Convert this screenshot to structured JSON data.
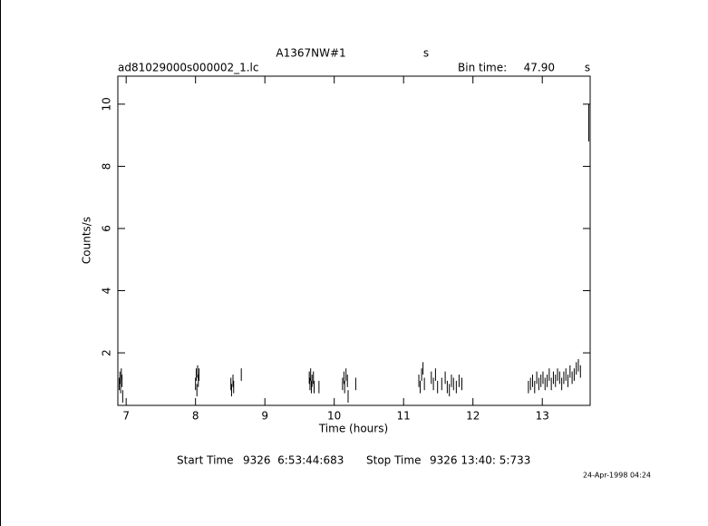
{
  "chart_data": {
    "type": "errorbar",
    "title": "A1367NW#1",
    "title_unit": "s",
    "file": "ad81029000s000002_1.lc",
    "bin_label": "Bin time:",
    "bin_value": "47.90",
    "bin_unit": "s",
    "xlabel": "Time (hours)",
    "ylabel": "Counts/s",
    "start_label": "Start Time",
    "start_value": "9326  6:53:44:683",
    "stop_label": "Stop Time",
    "stop_value": "9326 13:40: 5:733",
    "date": "24-Apr-1998 04:24",
    "color": "#000000",
    "xlim": [
      6.88,
      13.69
    ],
    "xticks": [
      7,
      8,
      9,
      10,
      11,
      12,
      13
    ],
    "ylim": [
      0.31,
      10.9
    ],
    "yticks": [
      2,
      4,
      6,
      8,
      10
    ],
    "x": [
      6.9,
      6.91,
      6.92,
      6.93,
      6.94,
      6.95,
      8.0,
      8.01,
      8.02,
      8.03,
      8.04,
      8.05,
      8.51,
      8.52,
      8.54,
      8.55,
      8.66,
      9.64,
      9.65,
      9.66,
      9.67,
      9.68,
      9.7,
      9.71,
      9.78,
      10.12,
      10.14,
      10.15,
      10.17,
      10.19,
      10.2,
      10.31,
      11.22,
      11.24,
      11.26,
      11.28,
      11.3,
      11.4,
      11.43,
      11.46,
      11.49,
      11.55,
      11.6,
      11.63,
      11.66,
      11.69,
      11.72,
      11.76,
      11.8,
      11.84,
      12.8,
      12.83,
      12.86,
      12.89,
      12.92,
      12.95,
      12.98,
      13.01,
      13.04,
      13.07,
      13.1,
      13.13,
      13.16,
      13.19,
      13.22,
      13.25,
      13.28,
      13.31,
      13.34,
      13.37,
      13.4,
      13.43,
      13.46,
      13.49,
      13.52,
      13.55,
      13.67
    ],
    "values": [
      1.0,
      1.2,
      0.9,
      1.3,
      1.1,
      0.6,
      1.0,
      1.3,
      0.8,
      1.4,
      1.1,
      1.3,
      1.0,
      0.8,
      1.1,
      0.9,
      1.3,
      1.2,
      1.0,
      1.3,
      0.9,
      1.1,
      1.2,
      0.9,
      0.9,
      1.0,
      1.2,
      0.9,
      1.3,
      1.1,
      0.6,
      1.0,
      1.1,
      0.9,
      1.3,
      1.5,
      1.0,
      1.2,
      1.0,
      1.3,
      0.9,
      1.0,
      1.2,
      0.9,
      0.8,
      1.1,
      1.0,
      0.9,
      1.1,
      1.0,
      0.9,
      1.0,
      1.1,
      0.9,
      1.2,
      1.0,
      1.1,
      1.2,
      1.0,
      1.1,
      1.3,
      1.0,
      1.2,
      1.1,
      1.3,
      1.2,
      1.0,
      1.2,
      1.3,
      1.1,
      1.4,
      1.2,
      1.3,
      1.5,
      1.6,
      1.4,
      9.4
    ],
    "errors": [
      0.2,
      0.2,
      0.2,
      0.2,
      0.2,
      0.2,
      0.2,
      0.2,
      0.2,
      0.2,
      0.2,
      0.2,
      0.2,
      0.2,
      0.2,
      0.2,
      0.2,
      0.2,
      0.2,
      0.2,
      0.2,
      0.2,
      0.2,
      0.2,
      0.2,
      0.2,
      0.2,
      0.2,
      0.2,
      0.2,
      0.2,
      0.2,
      0.2,
      0.2,
      0.2,
      0.2,
      0.2,
      0.2,
      0.2,
      0.2,
      0.2,
      0.2,
      0.2,
      0.2,
      0.2,
      0.2,
      0.2,
      0.2,
      0.2,
      0.2,
      0.2,
      0.2,
      0.2,
      0.2,
      0.2,
      0.2,
      0.2,
      0.2,
      0.2,
      0.2,
      0.2,
      0.2,
      0.2,
      0.2,
      0.2,
      0.2,
      0.2,
      0.2,
      0.2,
      0.2,
      0.2,
      0.2,
      0.2,
      0.2,
      0.2,
      0.2,
      0.6
    ]
  }
}
